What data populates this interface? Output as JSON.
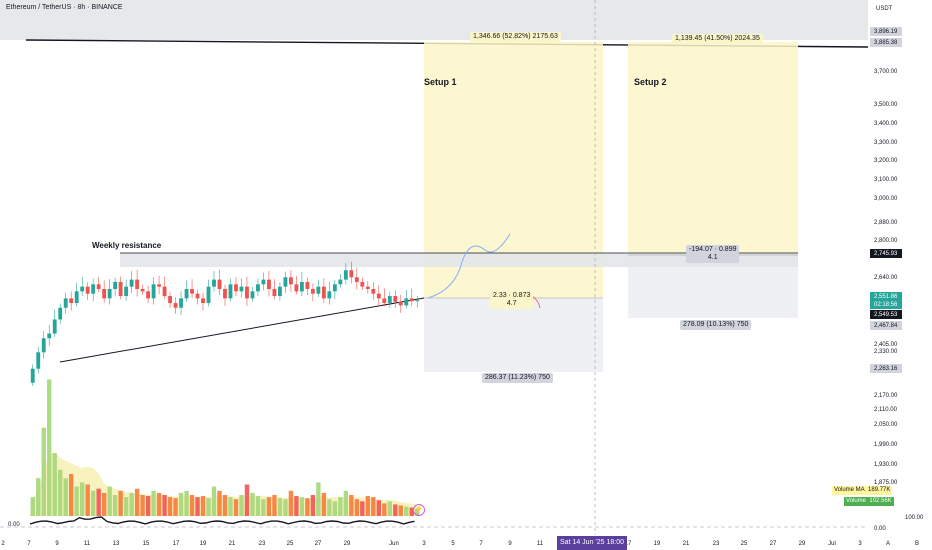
{
  "header": {
    "symbol_title": "Ethereum / TetherUS · 8h · BINANCE",
    "axis_unit": "USDT"
  },
  "annotations": {
    "setup1_label": "Setup 1",
    "setup2_label": "Setup 2",
    "weekly_resistance": "Weekly resistance",
    "setup1_target": "1,346.66 (52.82%) 2175.63",
    "setup1_rr_value": "2.33 · 0.873",
    "setup1_rr_ratio": "4.7",
    "setup1_stop": "286.37 (11.23%) 750",
    "setup2_target": "1,139.45 (41.50%) 2024.35",
    "setup2_rr_value": "-194.07 · 0.899",
    "setup2_rr_ratio": "4.1",
    "setup2_stop": "278.09 (10.13%) 750"
  },
  "price_axis": {
    "ticks": [
      "3,896.19",
      "3,885.38",
      "3,700.00",
      "3,500.00",
      "3,400.00",
      "3,300.00",
      "3,200.00",
      "3,100.00",
      "3,000.00",
      "2,880.00",
      "2,800.00",
      "2,745.93",
      "2,640.00",
      "2,551.86",
      "02:18:56",
      "2,549.53",
      "2,467.84",
      "2,405.00",
      "2,330.00",
      "2,263.16",
      "2,170.00",
      "2,110.00",
      "2,050.00",
      "1,990.00",
      "1,930.00",
      "1,875.00",
      "100.00",
      "0.00"
    ],
    "tag_colors": {
      "last_price": "#26a69a",
      "gray": "#d1d4dc",
      "black": "#131722"
    }
  },
  "time_axis": {
    "ticks": [
      "2",
      "7",
      "9",
      "11",
      "13",
      "15",
      "17",
      "19",
      "21",
      "23",
      "25",
      "27",
      "29",
      "Jun",
      "3",
      "5",
      "7",
      "9",
      "11",
      "17",
      "19",
      "21",
      "23",
      "25",
      "27",
      "29",
      "Jul",
      "3",
      "A",
      "B"
    ],
    "crosshair_date": "Sat 14 Jun '25   18:00"
  },
  "volume": {
    "ma_label": "Volume MA",
    "ma_value": "189.77K",
    "vol_label": "Volume",
    "vol_value": "102.56K"
  },
  "oscillator": {
    "left_value": "0.00",
    "right_value_top": "100.00",
    "right_value_bottom": "0.00"
  },
  "chart_data": {
    "type": "candlestick",
    "series": [
      {
        "name": "ETHUSDT",
        "closes": [
          2260,
          2330,
          2390,
          2410,
          2470,
          2520,
          2560,
          2540,
          2590,
          2610,
          2580,
          2620,
          2600,
          2560,
          2600,
          2630,
          2570,
          2610,
          2640,
          2600,
          2590,
          2560,
          2620,
          2610,
          2570,
          2540,
          2520,
          2560,
          2600,
          2580,
          2560,
          2540,
          2610,
          2640,
          2600,
          2560,
          2620,
          2590,
          2610,
          2560,
          2590,
          2620,
          2640,
          2600,
          2570,
          2610,
          2650,
          2620,
          2590,
          2630,
          2600,
          2580,
          2610,
          2560,
          2590,
          2620,
          2640,
          2680,
          2650,
          2630,
          2610,
          2600,
          2580,
          2560,
          2540,
          2570,
          2545,
          2530,
          2560,
          2548,
          2552
        ]
      }
    ],
    "volume_values": [
      90,
      180,
      420,
      650,
      300,
      220,
      180,
      200,
      140,
      160,
      150,
      120,
      130,
      110,
      140,
      100,
      120,
      90,
      110,
      130,
      100,
      95,
      120,
      110,
      100,
      90,
      85,
      110,
      120,
      100,
      90,
      95,
      85,
      140,
      120,
      100,
      90,
      80,
      100,
      150,
      110,
      95,
      80,
      90,
      100,
      85,
      80,
      120,
      95,
      90,
      85,
      100,
      160,
      110,
      80,
      70,
      90,
      120,
      100,
      80,
      70,
      95,
      90,
      75,
      60,
      70,
      55,
      50,
      45,
      40,
      35
    ],
    "levels": {
      "weekly_resistance": 2745,
      "top_line": 3885
    },
    "ylim": [
      1870,
      3900
    ]
  }
}
